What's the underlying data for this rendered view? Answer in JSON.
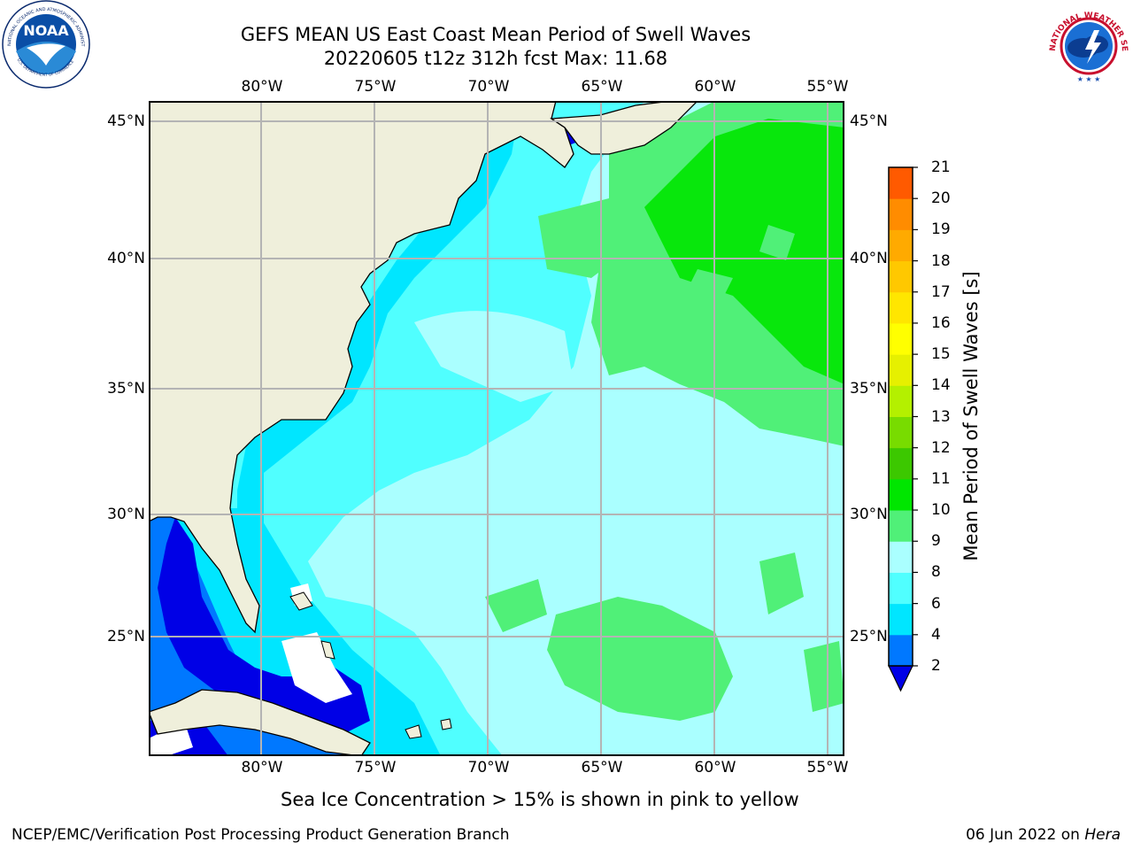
{
  "title": {
    "line1": "GEFS MEAN US East Coast Mean Period of Swell Waves",
    "line2": "20220605 t12z 312h fcst   Max: 11.68"
  },
  "map": {
    "lon_labels": [
      "80°W",
      "75°W",
      "70°W",
      "65°W",
      "60°W",
      "55°W"
    ],
    "lat_labels": [
      "45°N",
      "40°N",
      "35°N",
      "30°N",
      "25°N"
    ]
  },
  "colorbar": {
    "label": "Mean Period of Swell Waves [s]",
    "ticks": [
      "21",
      "20",
      "19",
      "18",
      "17",
      "16",
      "15",
      "14",
      "13",
      "12",
      "11",
      "10",
      "9",
      "8",
      "6",
      "4",
      "2"
    ],
    "colors": [
      "#0000e6",
      "#0078ff",
      "#00e6ff",
      "#50ffff",
      "#aaffff",
      "#50f078",
      "#00e600",
      "#3cc800",
      "#78dc00",
      "#b4f000",
      "#e6f000",
      "#ffff00",
      "#ffe600",
      "#ffc800",
      "#ffaa00",
      "#ff8c00",
      "#ff5a00",
      "#ff3200",
      "#ff0000"
    ]
  },
  "logos": {
    "noaa_text": "NOAA",
    "noaa_ring": "NATIONAL OCEANIC AND ATMOSPHERIC ADMINISTRATION",
    "noaa_dept": "U.S. DEPARTMENT OF COMMERCE",
    "nws_ring": "NATIONAL WEATHER SERVICE"
  },
  "footnote": "Sea Ice Concentration > 15% is shown in pink to yellow",
  "credit": "NCEP/EMC/Verification Post Processing Product Generation Branch",
  "date": {
    "text": "06 Jun 2022 on ",
    "machine": "Hera"
  }
}
